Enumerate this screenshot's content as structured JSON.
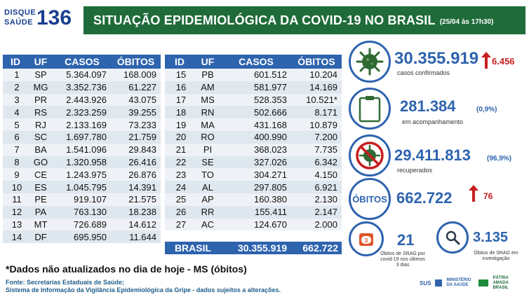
{
  "logo": {
    "line1": "DISQUE",
    "line2": "SAÚDE",
    "number": "136"
  },
  "header": {
    "title": "SITUAÇÃO EPIDEMIOLÓGICA DA COVID-19 NO BRASIL",
    "date": "(25/04 às 17h30)"
  },
  "table": {
    "columns": [
      "ID",
      "UF",
      "CASOS",
      "ÓBITOS"
    ],
    "left_rows": [
      [
        "1",
        "SP",
        "5.364.097",
        "168.009"
      ],
      [
        "2",
        "MG",
        "3.352.736",
        "61.227"
      ],
      [
        "3",
        "PR",
        "2.443.926",
        "43.075"
      ],
      [
        "4",
        "RS",
        "2.323.259",
        "39.255"
      ],
      [
        "5",
        "RJ",
        "2.133.169",
        "73.233"
      ],
      [
        "6",
        "SC",
        "1.697.780",
        "21.759"
      ],
      [
        "7",
        "BA",
        "1.541.096",
        "29.843"
      ],
      [
        "8",
        "GO",
        "1.320.958",
        "26.416"
      ],
      [
        "9",
        "CE",
        "1.243.975",
        "26.876"
      ],
      [
        "10",
        "ES",
        "1.045.795",
        "14.391"
      ],
      [
        "11",
        "PE",
        "919.107",
        "21.575"
      ],
      [
        "12",
        "PA",
        "763.130",
        "18.238"
      ],
      [
        "13",
        "MT",
        "726.689",
        "14.612"
      ],
      [
        "14",
        "DF",
        "695.950",
        "11.644"
      ]
    ],
    "right_rows": [
      [
        "15",
        "PB",
        "601.512",
        "10.204"
      ],
      [
        "16",
        "AM",
        "581.977",
        "14.169"
      ],
      [
        "17",
        "MS",
        "528.353",
        "10.521*"
      ],
      [
        "18",
        "RN",
        "502.666",
        "8.171"
      ],
      [
        "19",
        "MA",
        "431.168",
        "10.879"
      ],
      [
        "20",
        "RO",
        "400.990",
        "7.200"
      ],
      [
        "21",
        "PI",
        "368.023",
        "7.735"
      ],
      [
        "22",
        "SE",
        "327.026",
        "6.342"
      ],
      [
        "23",
        "TO",
        "304.271",
        "4.150"
      ],
      [
        "24",
        "AL",
        "297.805",
        "6.921"
      ],
      [
        "25",
        "AP",
        "160.380",
        "2.130"
      ],
      [
        "26",
        "RR",
        "155.411",
        "2.147"
      ],
      [
        "27",
        "AC",
        "124.670",
        "2.000"
      ]
    ],
    "total": {
      "label": "BRASIL",
      "cases": "30.355.919",
      "deaths": "662.722"
    }
  },
  "note": "*Dados não atualizados no dia de hoje - MS (óbitos)",
  "source": {
    "line1": "Fonte: Secretarias Estaduais de Saúde;",
    "line2": "Sistema de Informação da Vigilância Epidemiológica da Gripe - dados sujeitos a alterações."
  },
  "stats": {
    "confirmed": {
      "value": "30.355.919",
      "increase": "6.456",
      "label": "casos confirmados",
      "icon": "virus-icon"
    },
    "monitoring": {
      "value": "281.384",
      "pct": "(0,9%)",
      "label": "em acompanhamento",
      "icon": "clipboard-icon"
    },
    "recovered": {
      "value": "29.411.813",
      "pct": "(96,9%)",
      "label": "recuperados",
      "icon": "no-virus-icon"
    },
    "deaths": {
      "label": "ÓBITOS",
      "value": "662.722",
      "increase": "76"
    },
    "srag_3days": {
      "value": "21",
      "badge": "3",
      "label": "Óbitos de SRAG por covid-19 nos últimos 3 dias",
      "icon": "calendar-icon"
    },
    "srag_investigation": {
      "value": "3.135",
      "label": "Óbitos de SRAG em investigação",
      "icon": "magnifier-icon"
    }
  },
  "footer": {
    "sus": "SUS",
    "ministry": "MINISTÉRIO DA SAÚDE",
    "gov": "PÁTRIA AMADA BRASIL"
  },
  "colors": {
    "header_green": "#1f6b3a",
    "table_blue": "#2e63ae",
    "alert_red": "#c81e1e"
  }
}
